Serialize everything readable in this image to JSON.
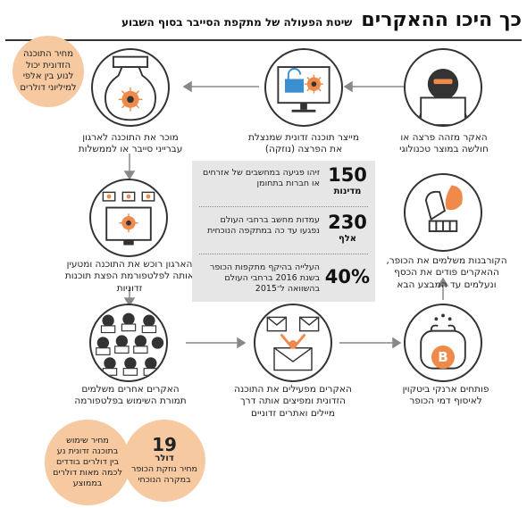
{
  "header": {
    "title": "כך היכו ההאקרים",
    "subtitle": "שיטת הפעולה של מתקפת הסייבר בסוף השבוע"
  },
  "steps": [
    {
      "text": "האקר מזהה פרצה או חולשה במוצר טכנולוגי"
    },
    {
      "text": "מייצר תוכנה זדונית שמנצלת את הפרצה (נוזקה)"
    },
    {
      "text": "מוכר את התוכנה לארגון עברייני סייבר או לממשלות"
    },
    {
      "text": "הארגון רוכש את התוכנה ומטעין אותה לפלטפורמת הפצת תוכנות זדוניות"
    },
    {
      "text": "האקרים אחרים משלמים תמורת השימוש בפלטפורמה"
    },
    {
      "text": "האקרים מפעילים את התוכנה הזדונית ומפיצים אותה דרך מיילים ואתרים זדוניים"
    },
    {
      "text": "פותחים ארנקי ביטקוין לאיסוף דמי הכופר"
    },
    {
      "text": "הקורבנות משלמים את הכופר, ההאקרים פודים את הכסף ונעלמים עד המבצע הבא"
    }
  ],
  "notes": {
    "price_malware": "מחיר התוכנה הזדונית יכול לנוע בין אלפי למיליוני דולרים",
    "price_usage": "מחיר שימוש בתוכנה זדונית נע בין דולרים בודדים לכמה מאות דולרים בממוצע",
    "ransom_value": "19",
    "ransom_unit": "דולר",
    "ransom_text": "מחיר נוזקת הכופר במקרה הנוכחי"
  },
  "stats": [
    {
      "value": "150",
      "unit": "מדינות",
      "text": "זיהו פגיעה במחשבים של אזרחים או חברות בתחומן"
    },
    {
      "value": "230",
      "unit": "אלף",
      "text": "עמדות מחשב ברחבי העולם נפגעו עד כה במתקפה הנוכחית"
    },
    {
      "value": "40%",
      "unit": "",
      "text": "העלייה בהיקף מתקפות הכופר בשנת 2016 ברחבי העולם בהשוואה ל־2015"
    }
  ],
  "icons": {
    "bitcoin_symbol": "B"
  },
  "colors": {
    "accent": "#f08a4b",
    "note_bg": "#f6c9a0",
    "stats_bg": "#e6e6e6",
    "line": "#333333"
  }
}
